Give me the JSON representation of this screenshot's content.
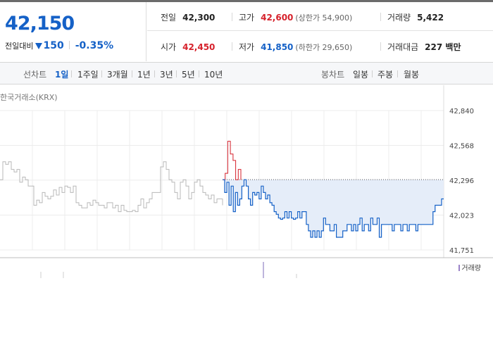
{
  "quote": {
    "current_price": "42,150",
    "change_label": "전일대비",
    "change_value": "150",
    "change_direction": "down",
    "change_percent": "-0.35%"
  },
  "stats": {
    "prev_close": {
      "label": "전일",
      "value": "42,300"
    },
    "high": {
      "label": "고가",
      "value": "42,600",
      "sub": "(상한가 54,900)"
    },
    "volume": {
      "label": "거래량",
      "value": "5,422"
    },
    "open": {
      "label": "시가",
      "value": "42,450"
    },
    "low": {
      "label": "저가",
      "value": "41,850",
      "sub": "(하한가 29,650)"
    },
    "trade_amount": {
      "label": "거래대금",
      "value": "227 백만"
    }
  },
  "toolbar": {
    "line_chart_label": "선차트",
    "periods": [
      "1일",
      "1주일",
      "3개월",
      "1년",
      "3년",
      "5년",
      "10년"
    ],
    "active_period": "1일",
    "candle_chart_label": "봉차트",
    "candle_periods": [
      "일봉",
      "주봉",
      "월봉"
    ]
  },
  "chart_data": {
    "type": "line",
    "source": "한국거래소(KRX)",
    "yaxis_ticks": [
      "42,840",
      "42,568",
      "42,296",
      "42,023",
      "41,751"
    ],
    "ylim": [
      41751,
      42840
    ],
    "reference_line": 42300,
    "grid": true,
    "series": [
      {
        "color": "#b8b8b8",
        "values": [
          42300,
          42440,
          42420,
          42440,
          42380,
          42360,
          42380,
          42280,
          42320,
          42300,
          42250,
          42250,
          42100,
          42140,
          42120,
          42200,
          42170,
          42150,
          42170,
          42220,
          42180,
          42240,
          42200,
          42250,
          42240,
          42200,
          42250,
          42120,
          42100,
          42080,
          42080,
          42120,
          42100,
          42140,
          42120,
          42100,
          42100,
          42080,
          42120,
          42120,
          42080,
          42100,
          42050,
          42100,
          42060,
          42050,
          42050,
          42060,
          42050,
          42100,
          42150,
          42080,
          42120,
          42150,
          42200,
          42200,
          42200,
          42400,
          42440,
          42380,
          42300,
          42280,
          42200,
          42150,
          42280,
          42300,
          42250,
          42150,
          42200,
          42280,
          42300,
          42250,
          42200,
          42180,
          42150,
          42180,
          42120,
          42150,
          42150,
          42100
        ]
      },
      {
        "color": "#d6212b",
        "values": [
          42300,
          42350,
          42600,
          42500,
          42450,
          42300,
          42380,
          42300
        ]
      },
      {
        "color": "#1561c7",
        "values": [
          42300,
          42200,
          42280,
          42100,
          42250,
          42050,
          42200,
          42100,
          42150,
          42250,
          42300,
          42250,
          42150,
          42100,
          42200,
          42180,
          42200,
          42150,
          42250,
          42200,
          42150,
          42180,
          42120,
          42100,
          42050,
          42030,
          42000,
          41990,
          42000,
          42050,
          42000,
          42050,
          42000,
          41990,
          42000,
          42050,
          42000,
          42050,
          42050,
          41950,
          41900,
          41850,
          41900,
          41850,
          41900,
          41850,
          41900,
          42000,
          41950,
          41950,
          41900,
          41900,
          41950,
          41850,
          41850,
          41850,
          41900,
          41900,
          41950,
          41950,
          41900,
          41950,
          41900,
          41950,
          42000,
          41900,
          41950,
          41950,
          41900,
          42000,
          41950,
          41950,
          42000,
          41850,
          41950,
          41950,
          41950,
          41950,
          41950,
          41900,
          41950,
          41950,
          41950,
          41900,
          41950,
          41950,
          41900,
          41950,
          41950,
          41950,
          41900,
          41950,
          41950,
          41950,
          41950,
          41950,
          41950,
          41950,
          42050,
          42100,
          42100,
          42100,
          42150,
          42150
        ]
      }
    ]
  },
  "volume_legend": {
    "label": "거래량",
    "color": "#9a82c8"
  }
}
